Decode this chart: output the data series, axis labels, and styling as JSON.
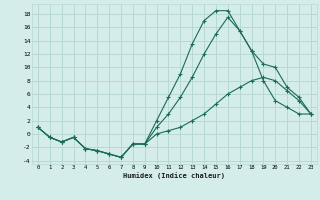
{
  "xlabel": "Humidex (Indice chaleur)",
  "bg_color": "#d4edea",
  "grid_color": "#b8d8d4",
  "line_color": "#1a6b5a",
  "xlim": [
    -0.5,
    23.5
  ],
  "ylim": [
    -4.5,
    19.5
  ],
  "yticks": [
    -4,
    -2,
    0,
    2,
    4,
    6,
    8,
    10,
    12,
    14,
    16,
    18
  ],
  "xticks": [
    0,
    1,
    2,
    3,
    4,
    5,
    6,
    7,
    8,
    9,
    10,
    11,
    12,
    13,
    14,
    15,
    16,
    17,
    18,
    19,
    20,
    21,
    22,
    23
  ],
  "line1_x": [
    0,
    1,
    2,
    3,
    4,
    5,
    6,
    7,
    8,
    9,
    10,
    11,
    12,
    13,
    14,
    15,
    16,
    17,
    18,
    19,
    20,
    21,
    22,
    23
  ],
  "line1_y": [
    1,
    -0.5,
    -1.2,
    -0.5,
    -2.2,
    -2.5,
    -3.0,
    -3.5,
    -1.5,
    -1.5,
    2.0,
    5.5,
    9.0,
    13.5,
    17.0,
    18.5,
    18.5,
    15.5,
    12.5,
    8.0,
    5.0,
    4.0,
    3.0,
    3.0
  ],
  "line2_x": [
    0,
    1,
    2,
    3,
    4,
    5,
    6,
    7,
    8,
    9,
    10,
    11,
    12,
    13,
    14,
    15,
    16,
    17,
    18,
    19,
    20,
    21,
    22,
    23
  ],
  "line2_y": [
    1,
    -0.5,
    -1.2,
    -0.5,
    -2.2,
    -2.5,
    -3.0,
    -3.5,
    -1.5,
    -1.5,
    1.0,
    3.0,
    5.5,
    8.5,
    12.0,
    15.0,
    17.5,
    15.5,
    12.5,
    10.5,
    10.0,
    7.0,
    5.5,
    3.0
  ],
  "line3_x": [
    0,
    1,
    2,
    3,
    4,
    5,
    6,
    7,
    8,
    9,
    10,
    11,
    12,
    13,
    14,
    15,
    16,
    17,
    18,
    19,
    20,
    21,
    22,
    23
  ],
  "line3_y": [
    1,
    -0.5,
    -1.2,
    -0.5,
    -2.2,
    -2.5,
    -3.0,
    -3.5,
    -1.5,
    -1.5,
    0.0,
    0.5,
    1.0,
    2.0,
    3.0,
    4.5,
    6.0,
    7.0,
    8.0,
    8.5,
    8.0,
    6.5,
    5.0,
    3.0
  ]
}
